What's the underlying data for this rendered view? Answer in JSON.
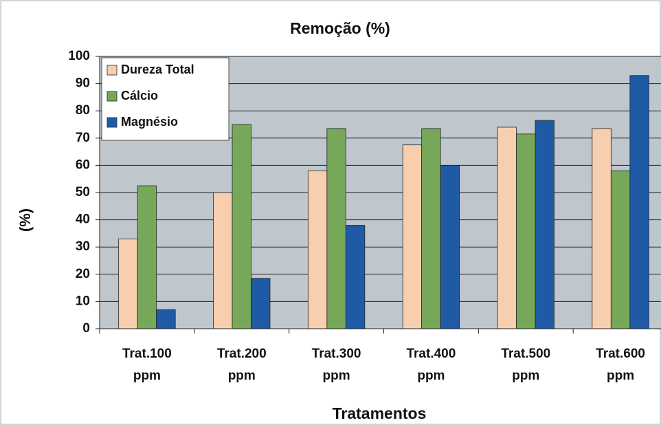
{
  "chart_data": {
    "type": "bar",
    "title": "Remoção (%)",
    "x_label": "Tratamentos",
    "y_label": "(%)",
    "categories": [
      "Trat.100 ppm",
      "Trat.200 ppm",
      "Trat.300 ppm",
      "Trat.400 ppm",
      "Trat.500 ppm",
      "Trat.600 ppm"
    ],
    "series": [
      {
        "name": "Dureza Total",
        "color": "#f8cfae",
        "values": [
          33,
          50,
          58,
          67.5,
          74,
          73.5
        ]
      },
      {
        "name": "Cálcio",
        "color": "#77a85a",
        "values": [
          52.5,
          75,
          73.5,
          73.5,
          71.5,
          58
        ]
      },
      {
        "name": "Magnésio",
        "color": "#1f5aa6",
        "values": [
          7,
          18.5,
          38,
          60,
          76.5,
          93
        ]
      }
    ],
    "ylim": [
      0,
      100
    ],
    "yticks": [
      0,
      10,
      20,
      30,
      40,
      50,
      60,
      70,
      80,
      90,
      100
    ],
    "grid": true,
    "legend": "top-left"
  }
}
